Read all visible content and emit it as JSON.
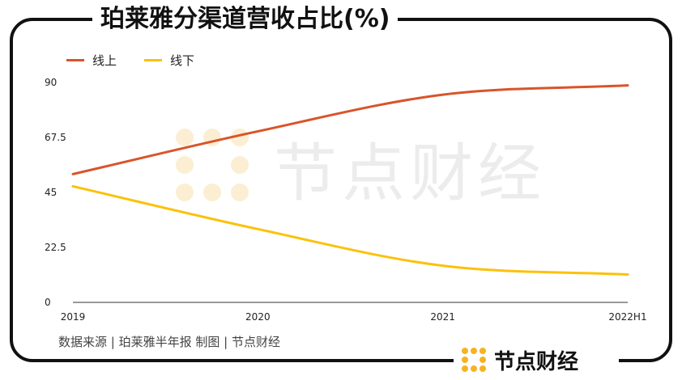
{
  "chart_data": {
    "type": "line",
    "title": "珀莱雅分渠道营收占比(%)",
    "categories": [
      "2019",
      "2020",
      "2021",
      "2022H1"
    ],
    "ylim": [
      0,
      90
    ],
    "yticks": [
      "0",
      "22.5",
      "45",
      "67.5",
      "90"
    ],
    "grid": false,
    "legend_position": "top-left",
    "series": [
      {
        "name": "线上",
        "color": "#d9542a",
        "values": [
          52.5,
          70.0,
          85.0,
          88.8
        ]
      },
      {
        "name": "线下",
        "color": "#fcc10a",
        "values": [
          47.5,
          30.0,
          15.0,
          11.4
        ]
      }
    ]
  },
  "source_text": "数据来源 | 珀莱雅半年报   制图 | 节点财经",
  "watermark_text": "节点财经",
  "brand": {
    "name": "节点财经",
    "logo_color": "#f5b324",
    "icon": "dot-grid-logo-icon"
  }
}
